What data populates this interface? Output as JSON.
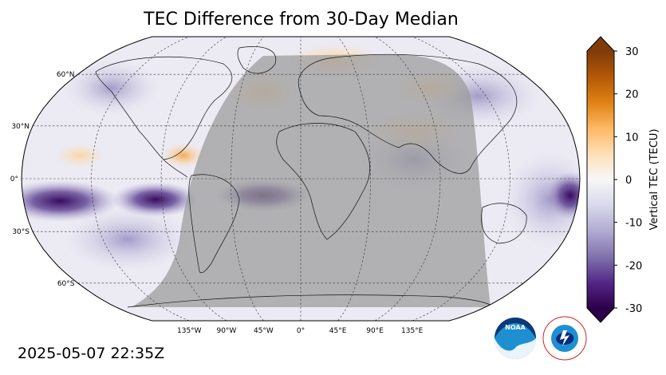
{
  "title": "TEC Difference from 30-Day Median",
  "timestamp": "2025-05-07 22:35Z",
  "map": {
    "projection": "Robinson",
    "lat_labels": [
      {
        "lat": 60,
        "text": "60°N"
      },
      {
        "lat": 30,
        "text": "30°N"
      },
      {
        "lat": 0,
        "text": "0°"
      },
      {
        "lat": -30,
        "text": "30°S"
      },
      {
        "lat": -60,
        "text": "60°S"
      }
    ],
    "lon_labels": [
      {
        "lon": -135,
        "text": "135°W"
      },
      {
        "lon": -90,
        "text": "90°W"
      },
      {
        "lon": -45,
        "text": "45°W"
      },
      {
        "lon": 0,
        "text": "0°"
      },
      {
        "lon": 45,
        "text": "45°E"
      },
      {
        "lon": 90,
        "text": "90°E"
      },
      {
        "lon": 135,
        "text": "135°E"
      }
    ],
    "night_shading": "grey"
  },
  "colorbar": {
    "label": "Vertical TEC (TECU)",
    "min": -30,
    "max": 30,
    "ticks": [
      {
        "value": 30,
        "text": "30"
      },
      {
        "value": 20,
        "text": "20"
      },
      {
        "value": 10,
        "text": "10"
      },
      {
        "value": 0,
        "text": "0"
      },
      {
        "value": -10,
        "text": "-10"
      },
      {
        "value": -20,
        "text": "-20"
      },
      {
        "value": -30,
        "text": "-30"
      }
    ],
    "colors": [
      "#2d004b",
      "#542788",
      "#8073ac",
      "#b2abd2",
      "#d8daeb",
      "#f7f7f7",
      "#fee0b6",
      "#fdb863",
      "#e08214",
      "#b35806",
      "#7f3b08"
    ]
  },
  "logos": {
    "noaa": "NOAA",
    "nws": "NATIONAL WEATHER SERVICE"
  }
}
